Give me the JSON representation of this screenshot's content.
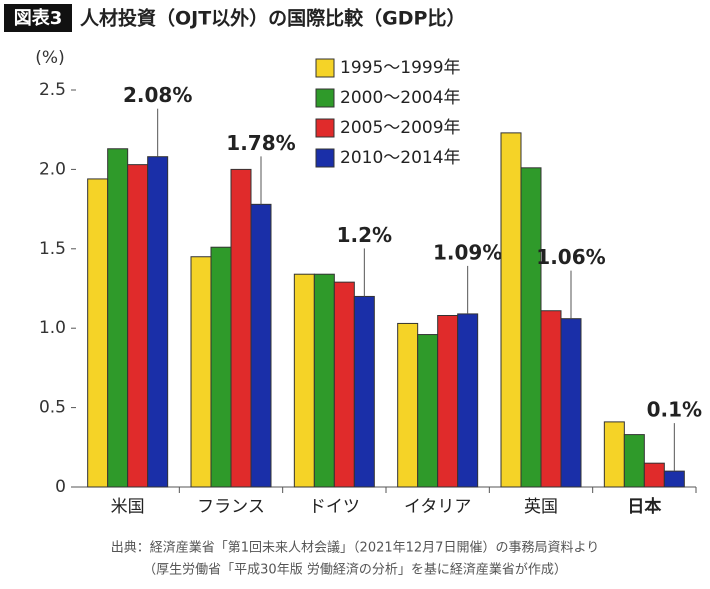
{
  "chart_data": {
    "type": "bar",
    "figure_label": "図表3",
    "title": "人材投資（OJT以外）の国際比較（GDP比）",
    "y_label": "(%)",
    "categories": [
      "米国",
      "フランス",
      "ドイツ",
      "イタリア",
      "英国",
      "日本"
    ],
    "series": [
      {
        "name": "1995〜1999年",
        "color": "#f5d327",
        "values": [
          1.94,
          1.45,
          1.34,
          1.03,
          2.23,
          0.41
        ]
      },
      {
        "name": "2000〜2004年",
        "color": "#2f9a2a",
        "values": [
          2.13,
          1.51,
          1.34,
          0.96,
          2.01,
          0.33
        ]
      },
      {
        "name": "2005〜2009年",
        "color": "#e02b2b",
        "values": [
          2.03,
          2.0,
          1.29,
          1.08,
          1.11,
          0.15
        ]
      },
      {
        "name": "2010〜2014年",
        "color": "#1a2fa8",
        "values": [
          2.08,
          1.78,
          1.2,
          1.09,
          1.06,
          0.1
        ],
        "value_labels": [
          "2.08%",
          "1.78%",
          "1.2%",
          "1.09%",
          "1.06%",
          "0.1%"
        ]
      }
    ],
    "ylim": [
      0,
      2.5
    ],
    "yticks": [
      0,
      0.5,
      {
        "value": 1,
        "label": "1.0"
      },
      1.5,
      {
        "value": 2,
        "label": "2.0"
      },
      2.5
    ],
    "grid": false,
    "legend": "top",
    "notes": [
      "出典：経済産業省「第1回未来人材会議」（2021年12月7日開催）の事務局資料より",
      "（厚生労働省「平成30年版 労働経済の分析」を基に経済産業省が作成）"
    ]
  }
}
